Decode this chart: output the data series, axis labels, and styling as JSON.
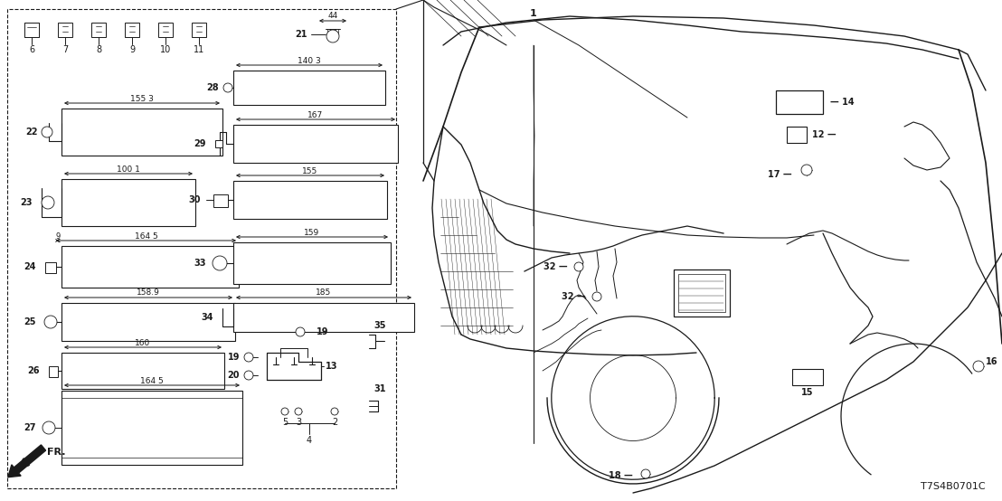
{
  "background_color": "#ffffff",
  "line_color": "#1a1a1a",
  "fig_width": 11.08,
  "fig_height": 5.54,
  "dpi": 100,
  "part_code": "T7S4B0701C"
}
